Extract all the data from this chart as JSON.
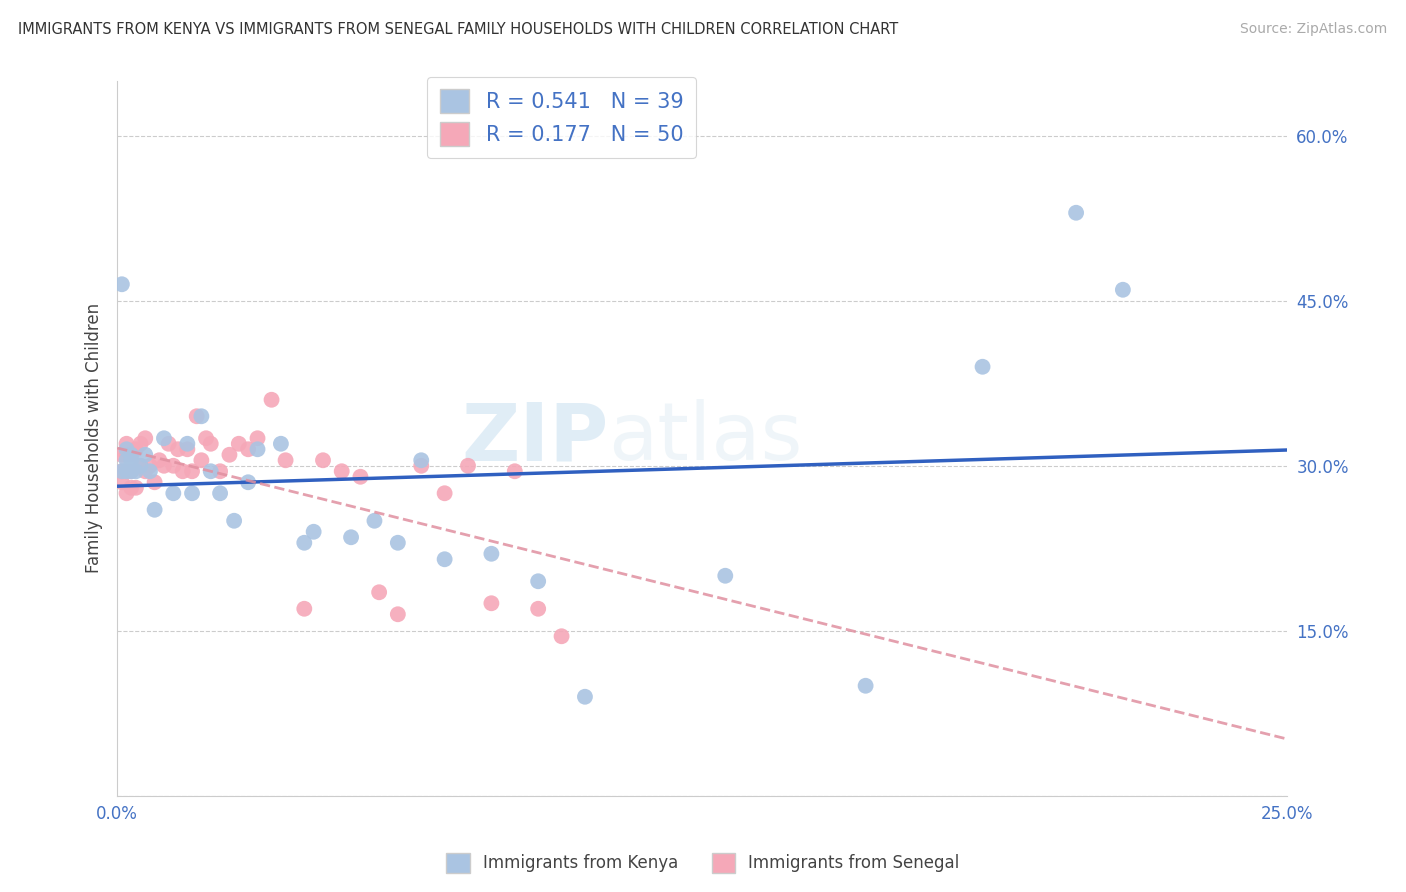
{
  "title": "IMMIGRANTS FROM KENYA VS IMMIGRANTS FROM SENEGAL FAMILY HOUSEHOLDS WITH CHILDREN CORRELATION CHART",
  "source": "Source: ZipAtlas.com",
  "ylabel": "Family Households with Children",
  "xlim": [
    0,
    0.25
  ],
  "ylim": [
    0.0,
    0.65
  ],
  "xtick_positions": [
    0.0,
    0.05,
    0.1,
    0.15,
    0.2,
    0.25
  ],
  "xticklabels": [
    "0.0%",
    "",
    "",
    "",
    "",
    "25.0%"
  ],
  "ytick_positions": [
    0.0,
    0.15,
    0.3,
    0.45,
    0.6
  ],
  "yticklabels": [
    "",
    "15.0%",
    "30.0%",
    "45.0%",
    "60.0%"
  ],
  "kenya_R": 0.541,
  "kenya_N": 39,
  "senegal_R": 0.177,
  "senegal_N": 50,
  "kenya_color": "#aac4e2",
  "senegal_color": "#f5a8b8",
  "kenya_line_color": "#3060c0",
  "senegal_line_color": "#e090a0",
  "legend_kenya": "Immigrants from Kenya",
  "legend_senegal": "Immigrants from Senegal",
  "watermark_zip": "ZIP",
  "watermark_atlas": "atlas",
  "kenya_x": [
    0.001,
    0.001,
    0.002,
    0.002,
    0.002,
    0.003,
    0.003,
    0.003,
    0.004,
    0.005,
    0.006,
    0.007,
    0.008,
    0.01,
    0.012,
    0.015,
    0.016,
    0.018,
    0.02,
    0.022,
    0.025,
    0.028,
    0.03,
    0.035,
    0.04,
    0.042,
    0.05,
    0.055,
    0.06,
    0.065,
    0.07,
    0.08,
    0.09,
    0.1,
    0.13,
    0.16,
    0.185,
    0.205,
    0.215
  ],
  "kenya_y": [
    0.465,
    0.295,
    0.305,
    0.315,
    0.295,
    0.295,
    0.305,
    0.31,
    0.295,
    0.3,
    0.31,
    0.295,
    0.26,
    0.325,
    0.275,
    0.32,
    0.275,
    0.345,
    0.295,
    0.275,
    0.25,
    0.285,
    0.315,
    0.32,
    0.23,
    0.24,
    0.235,
    0.25,
    0.23,
    0.305,
    0.215,
    0.22,
    0.195,
    0.09,
    0.2,
    0.1,
    0.39,
    0.53,
    0.46
  ],
  "senegal_x": [
    0.001,
    0.001,
    0.001,
    0.002,
    0.002,
    0.002,
    0.002,
    0.003,
    0.003,
    0.003,
    0.004,
    0.004,
    0.005,
    0.005,
    0.006,
    0.006,
    0.007,
    0.008,
    0.009,
    0.01,
    0.011,
    0.012,
    0.013,
    0.014,
    0.015,
    0.016,
    0.017,
    0.018,
    0.019,
    0.02,
    0.022,
    0.024,
    0.026,
    0.028,
    0.03,
    0.033,
    0.036,
    0.04,
    0.044,
    0.048,
    0.052,
    0.056,
    0.06,
    0.065,
    0.07,
    0.075,
    0.08,
    0.085,
    0.09,
    0.095
  ],
  "senegal_y": [
    0.285,
    0.31,
    0.295,
    0.275,
    0.295,
    0.31,
    0.32,
    0.28,
    0.295,
    0.31,
    0.28,
    0.315,
    0.3,
    0.32,
    0.295,
    0.325,
    0.3,
    0.285,
    0.305,
    0.3,
    0.32,
    0.3,
    0.315,
    0.295,
    0.315,
    0.295,
    0.345,
    0.305,
    0.325,
    0.32,
    0.295,
    0.31,
    0.32,
    0.315,
    0.325,
    0.36,
    0.305,
    0.17,
    0.305,
    0.295,
    0.29,
    0.185,
    0.165,
    0.3,
    0.275,
    0.3,
    0.175,
    0.295,
    0.17,
    0.145
  ]
}
